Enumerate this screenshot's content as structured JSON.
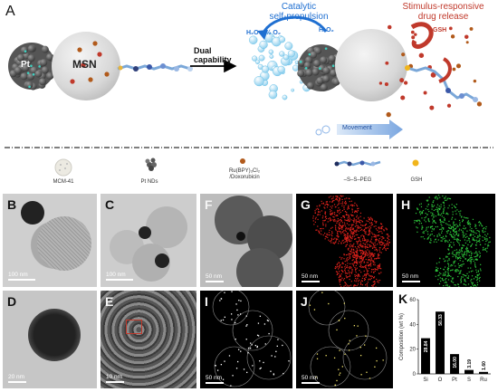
{
  "panel_a": {
    "label": "A",
    "pt_label": "Pt",
    "msn_label": "MSN",
    "arrow_text_line1": "Dual",
    "arrow_text_line2": "capability",
    "catalytic_line1": "Catalytic",
    "catalytic_line2": "self-propulsion",
    "h2o_o2": "H₂O + ½ O₂",
    "h2o2": "H₂O₂",
    "stimulus_line1": "Stimulus-responsive",
    "stimulus_line2": "drug release",
    "gsh": "GSH",
    "movement": "Movement",
    "colors": {
      "catalytic": "#1f6fd1",
      "stimulus": "#c0392b",
      "movement_arrow": "#8fb6e8"
    }
  },
  "legend": {
    "items": [
      {
        "label": "MCM-41",
        "icon": "mesoporous-sphere-icon"
      },
      {
        "label": "Pt NDs",
        "icon": "platinum-nanodendrite-icon"
      },
      {
        "label": "Ru(BPY)₃Cl₂ /Doxorubicin",
        "label_line1": "Ru(BPY)₃Cl₂",
        "label_line2": "/Doxorubicin",
        "icon": "drug-dot-icon"
      },
      {
        "label": "–S–S–PEG",
        "icon": "peg-chain-icon"
      },
      {
        "label": "GSH",
        "icon": "gsh-dot-icon"
      }
    ]
  },
  "panels": {
    "B": {
      "letter": "B",
      "scale": "100 nm"
    },
    "C": {
      "letter": "C",
      "scale": "100 nm"
    },
    "D": {
      "letter": "D",
      "scale": "20 nm"
    },
    "E": {
      "letter": "E",
      "scale": "10 nm"
    },
    "F": {
      "letter": "F",
      "scale": "50 nm"
    },
    "G": {
      "letter": "G",
      "scale": "50 nm"
    },
    "H": {
      "letter": "H",
      "scale": "50 nm"
    },
    "I": {
      "letter": "I",
      "scale": "50 nm"
    },
    "J": {
      "letter": "J",
      "scale": "50 nm"
    },
    "K": {
      "letter": "K"
    }
  },
  "chart_data": {
    "type": "bar",
    "categories": [
      "Si",
      "O",
      "Pt",
      "S",
      "Ru"
    ],
    "values": [
      28.84,
      50.33,
      16.0,
      3.19,
      1.6
    ],
    "value_labels": [
      "28.84",
      "50.33",
      "16.00",
      "3.19",
      "1.60"
    ],
    "ylabel": "Composition (wt %)",
    "ylim": [
      0,
      60
    ],
    "yticks": [
      "0",
      "20",
      "40",
      "60"
    ],
    "bar_color": "#000000",
    "grid": false
  }
}
